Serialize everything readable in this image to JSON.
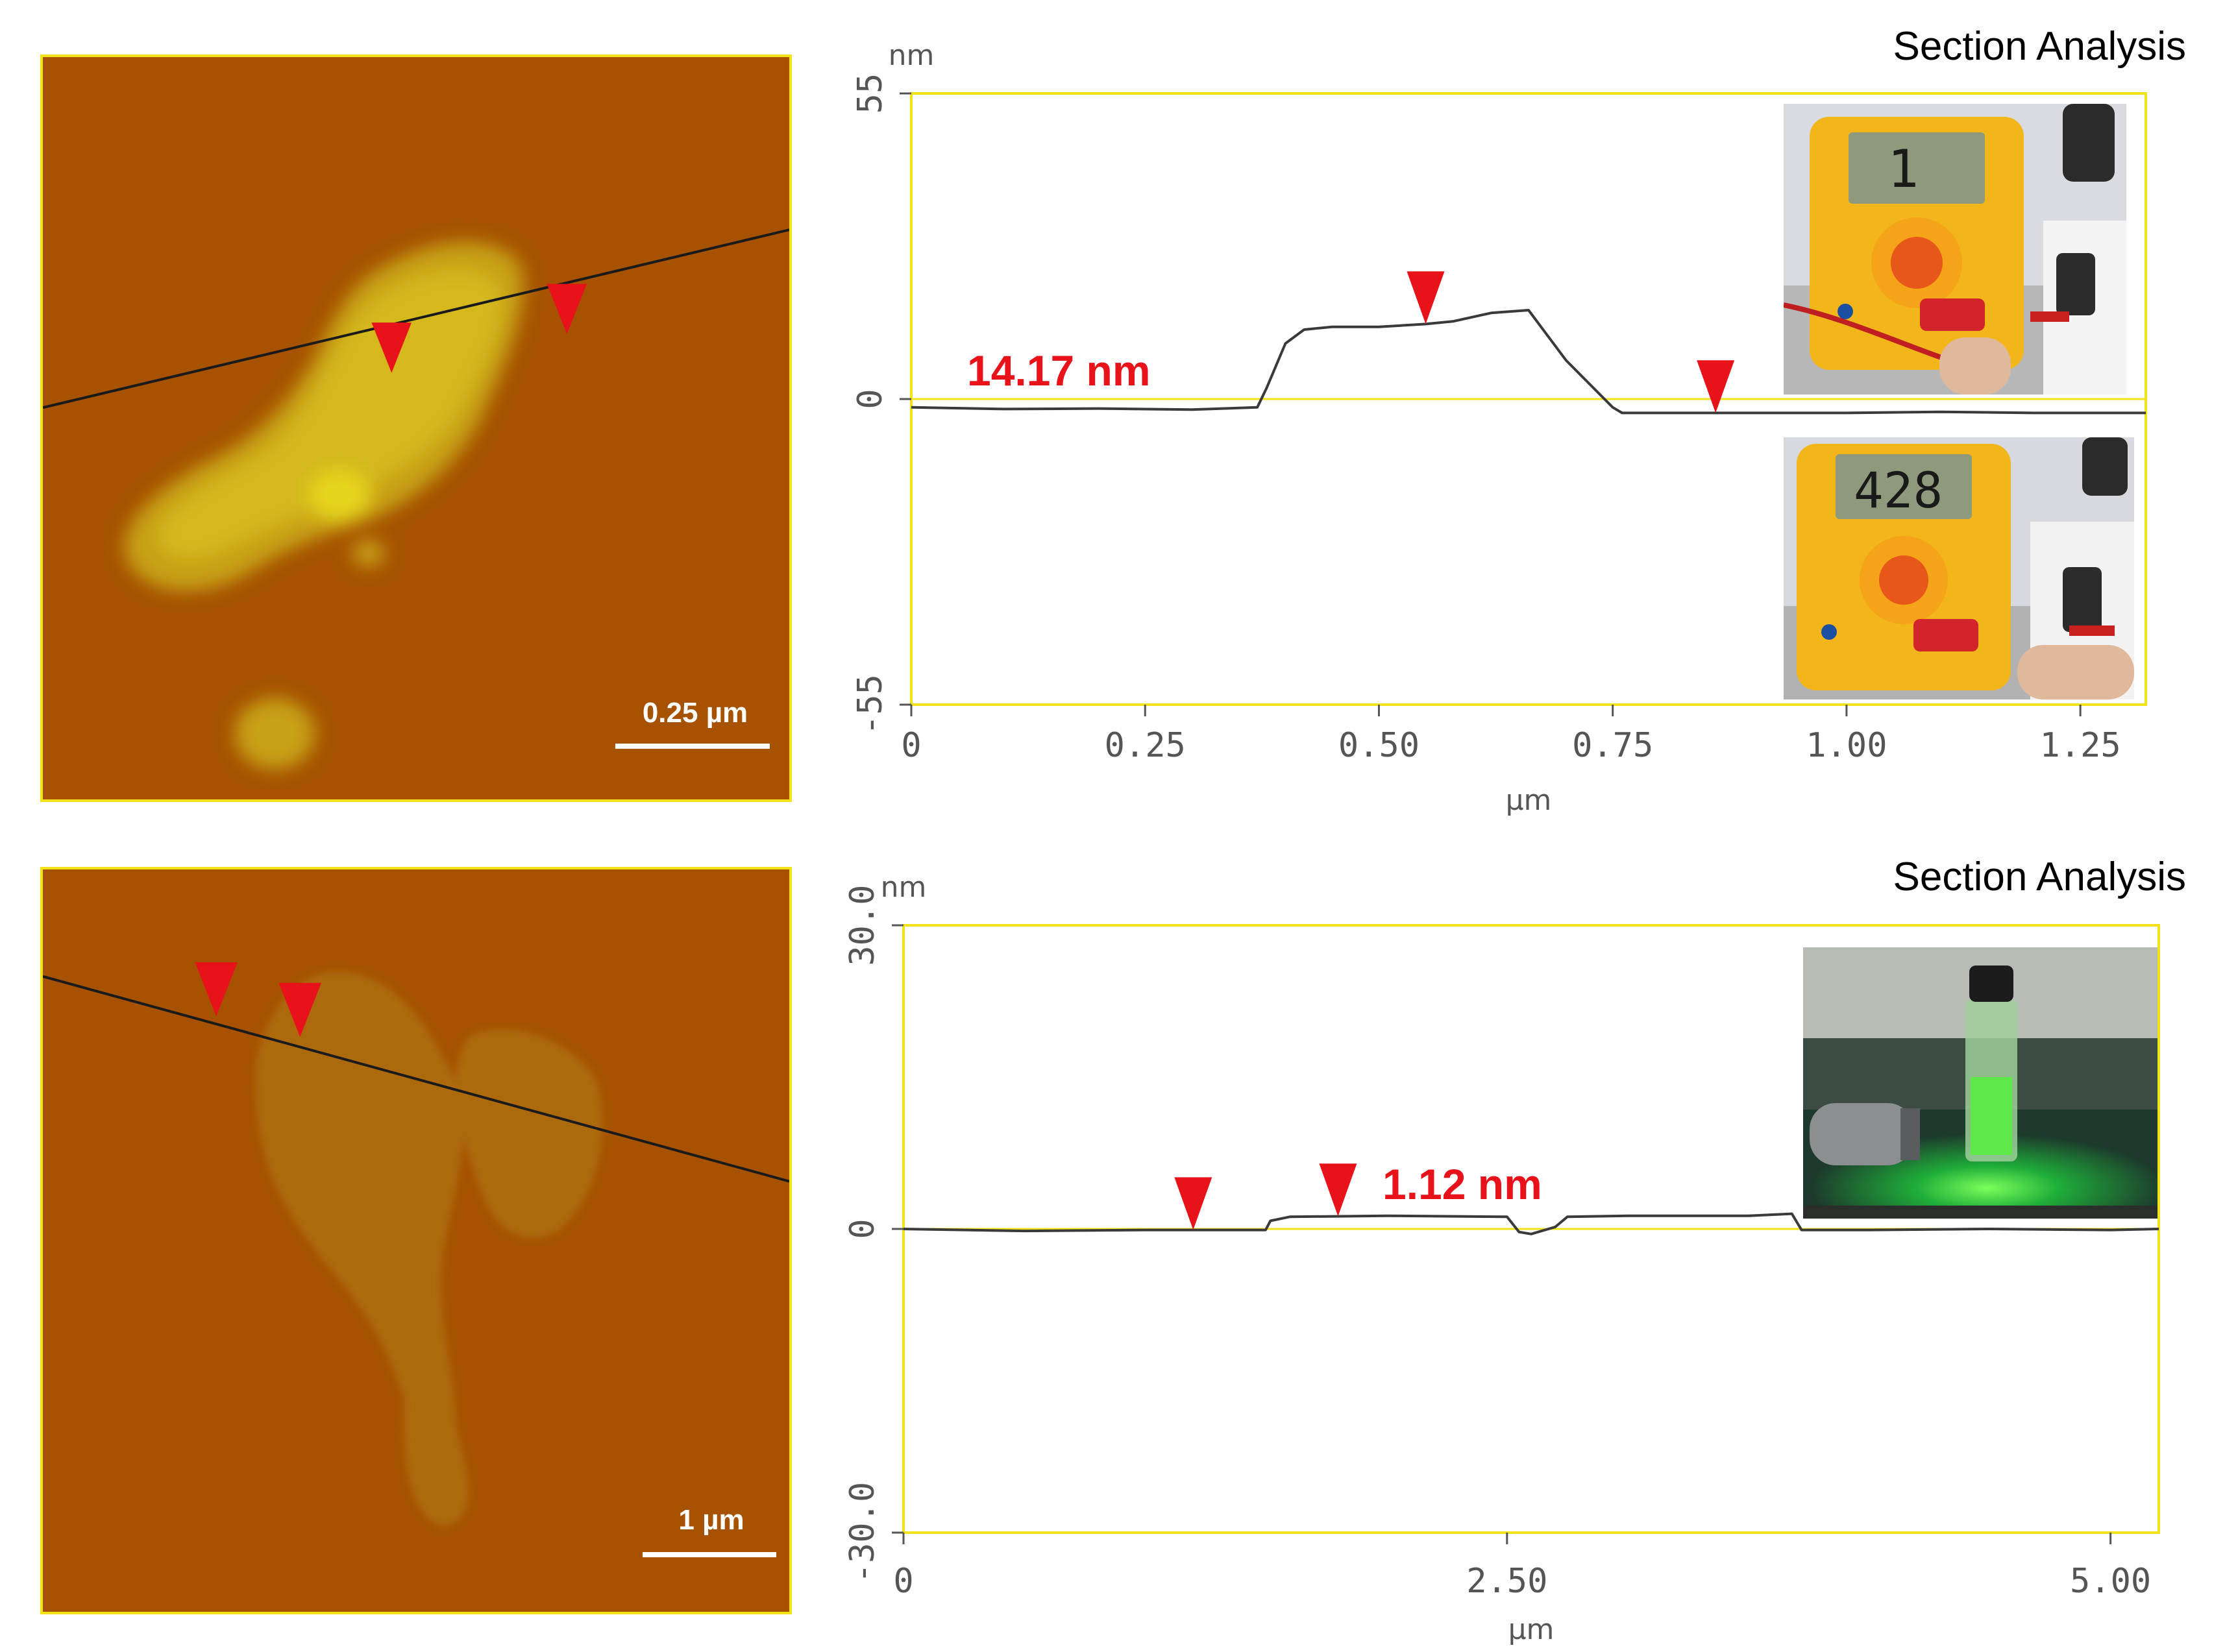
{
  "panels": [
    {
      "afm_image": {
        "scalebar_label": "0.25 µm"
      },
      "section_title": "Section Analysis"
    },
    {
      "afm_image": {
        "scalebar_label": "1 µm"
      },
      "section_title": "Section Analysis"
    }
  ],
  "colors": {
    "afm_background": "#a65200",
    "afm_flake": "#d9c21a",
    "frame": "#f2e21a",
    "marker": "#e8121a",
    "profile_line": "#3a3a3a"
  },
  "icons": [
    "red-triangle-marker-icon",
    "multimeter-photo",
    "laser-vial-photo"
  ],
  "chart_data": [
    {
      "type": "line",
      "title": "Section Analysis",
      "xlabel": "µm",
      "ylabel": "nm",
      "xlim": [
        0,
        1.32
      ],
      "ylim": [
        -55,
        55
      ],
      "xticks": [
        0,
        0.25,
        0.5,
        0.75,
        1.0,
        1.25
      ],
      "xtick_labels": [
        "0",
        "0.25",
        "0.50",
        "0.75",
        "1.00",
        "1.25"
      ],
      "yticks": [
        55,
        0,
        -55
      ],
      "ytick_labels": [
        "55",
        "0",
        "-55"
      ],
      "series": [
        {
          "x": [
            0,
            0.1,
            0.2,
            0.3,
            0.37,
            0.38,
            0.4,
            0.42,
            0.45,
            0.5,
            0.55,
            0.58,
            0.62,
            0.66,
            0.7,
            0.75,
            0.76,
            0.8,
            0.9,
            1.0,
            1.1,
            1.2,
            1.32
          ],
          "y": [
            -1.5,
            -1.8,
            -1.7,
            -1.9,
            -1.5,
            2,
            10,
            12.5,
            13,
            13,
            13.5,
            14,
            15.5,
            16,
            7,
            -1.5,
            -2.5,
            -2.5,
            -2.5,
            -2.5,
            -2.3,
            -2.5,
            -2.5
          ]
        }
      ],
      "markers_x": [
        0.55,
        0.86
      ],
      "annotation": "14.17 nm"
    },
    {
      "type": "line",
      "title": "Section Analysis",
      "xlabel": "µm",
      "ylabel": "nm",
      "xlim": [
        0,
        5.2
      ],
      "ylim": [
        -30,
        30
      ],
      "xticks": [
        0,
        2.5,
        5.0
      ],
      "xtick_labels": [
        "0",
        "2.50",
        "5.00"
      ],
      "yticks": [
        30,
        0,
        -30
      ],
      "ytick_labels": [
        "30.0",
        "0",
        "-30.0"
      ],
      "series": [
        {
          "x": [
            0,
            0.5,
            1.0,
            1.5,
            1.52,
            1.6,
            2.0,
            2.5,
            2.55,
            2.6,
            2.7,
            2.75,
            3.0,
            3.5,
            3.68,
            3.72,
            4.0,
            4.5,
            5.0,
            5.2
          ],
          "y": [
            0,
            -0.2,
            -0.1,
            -0.1,
            0.8,
            1.2,
            1.3,
            1.2,
            -0.3,
            -0.5,
            0.2,
            1.2,
            1.3,
            1.3,
            1.5,
            -0.1,
            -0.1,
            0,
            -0.1,
            0
          ]
        }
      ],
      "markers_x": [
        1.2,
        1.8
      ],
      "annotation": "1.12 nm"
    }
  ]
}
